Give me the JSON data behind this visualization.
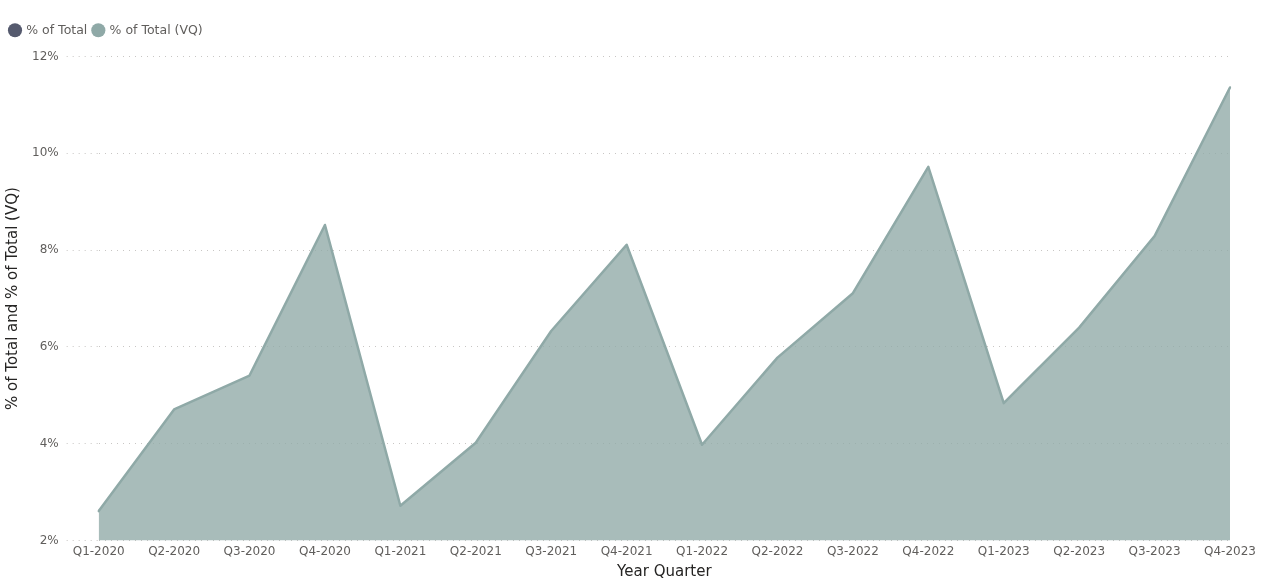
{
  "chart_data": {
    "type": "area",
    "xlabel": "Year Quarter",
    "ylabel": "% of Total and % of Total (VQ)",
    "categories": [
      "Q1-2020",
      "Q2-2020",
      "Q3-2020",
      "Q4-2020",
      "Q1-2021",
      "Q2-2021",
      "Q3-2021",
      "Q4-2021",
      "Q1-2022",
      "Q2-2022",
      "Q3-2022",
      "Q4-2022",
      "Q1-2023",
      "Q2-2023",
      "Q3-2023",
      "Q4-2023"
    ],
    "series": [
      {
        "name": "% of Total",
        "color": "#555a6e",
        "values": [
          null,
          null,
          null,
          null,
          null,
          null,
          null,
          null,
          null,
          null,
          null,
          null,
          null,
          null,
          null,
          null
        ]
      },
      {
        "name": "% of Total (VQ)",
        "color": "#8fa9a7",
        "values": [
          2.61,
          4.71,
          5.41,
          8.52,
          2.72,
          4.02,
          6.33,
          8.11,
          3.98,
          5.78,
          7.11,
          9.72,
          4.84,
          6.4,
          8.29,
          11.36
        ]
      }
    ],
    "ylim": [
      2,
      12
    ],
    "yticks": [
      {
        "value": 2,
        "label": "2%"
      },
      {
        "value": 4,
        "label": "4%"
      },
      {
        "value": 6,
        "label": "6%"
      },
      {
        "value": 8,
        "label": "8%"
      },
      {
        "value": 10,
        "label": "10%"
      },
      {
        "value": 12,
        "label": "12%"
      }
    ],
    "grid": "y",
    "legend": "top left",
    "marker": "none"
  }
}
